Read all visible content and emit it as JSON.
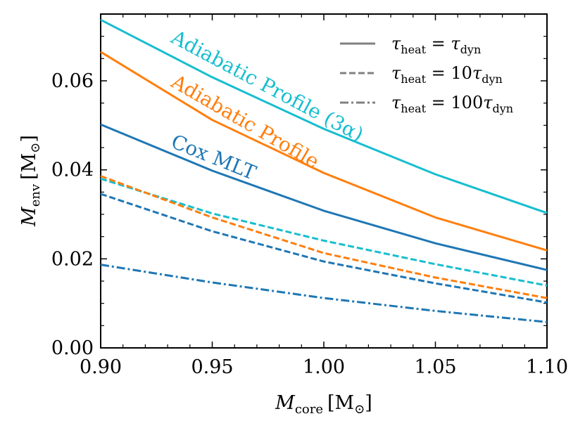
{
  "chart_data": {
    "type": "line",
    "title": "",
    "xlabel": "M_core [M_⊙]",
    "ylabel": "M_env [M_⊙]",
    "xlabel_parts": {
      "sym": "M",
      "sub": "core",
      "unit": "[M",
      "unit_sub": "⊙",
      "close": "]"
    },
    "ylabel_parts": {
      "sym": "M",
      "sub": "env",
      "unit": "[M",
      "unit_sub": "⊙",
      "close": "]"
    },
    "xlim": [
      0.9,
      1.1
    ],
    "ylim": [
      0.0,
      0.075
    ],
    "xticks": [
      0.9,
      0.95,
      1.0,
      1.05,
      1.1
    ],
    "xtick_labels": [
      "0.90",
      "0.95",
      "1.00",
      "1.05",
      "1.10"
    ],
    "yticks": [
      0.0,
      0.02,
      0.04,
      0.06
    ],
    "ytick_labels": [
      "0.00",
      "0.02",
      "0.04",
      "0.06"
    ],
    "x": [
      0.9,
      0.95,
      1.0,
      1.05,
      1.1
    ],
    "colors": {
      "cox": "#1f77b4",
      "adiabatic": "#ff7f0e",
      "adiabatic3a": "#17becf",
      "legend": "#808080"
    },
    "series": [
      {
        "name": "Adiabatic Profile (3α) τheat=τdyn",
        "model": "adiabatic3a",
        "style": "solid",
        "values": [
          0.0737,
          0.0608,
          0.0492,
          0.039,
          0.0303
        ]
      },
      {
        "name": "Adiabatic Profile τheat=τdyn",
        "model": "adiabatic",
        "style": "solid",
        "values": [
          0.0665,
          0.0512,
          0.0393,
          0.0293,
          0.0219
        ]
      },
      {
        "name": "Cox MLT τheat=τdyn",
        "model": "cox",
        "style": "solid",
        "values": [
          0.0502,
          0.0398,
          0.0308,
          0.0235,
          0.0175
        ]
      },
      {
        "name": "Adiabatic Profile (3α) τheat=10τdyn",
        "model": "adiabatic3a",
        "style": "dashed",
        "values": [
          0.038,
          0.0302,
          0.0241,
          0.0188,
          0.014
        ]
      },
      {
        "name": "Adiabatic Profile τheat=10τdyn",
        "model": "adiabatic",
        "style": "dashed",
        "values": [
          0.0386,
          0.0293,
          0.0213,
          0.0158,
          0.0112
        ]
      },
      {
        "name": "Cox MLT τheat=10τdyn",
        "model": "cox",
        "style": "dashed",
        "values": [
          0.0346,
          0.0262,
          0.0194,
          0.0145,
          0.0102
        ]
      },
      {
        "name": "Cox MLT τheat=100τdyn",
        "model": "cox",
        "style": "dashdot",
        "values": [
          0.0187,
          0.0147,
          0.0112,
          0.0083,
          0.0058
        ]
      }
    ],
    "annotations": [
      {
        "text": "Adiabatic Profile (3α)",
        "model": "adiabatic3a"
      },
      {
        "text": "Adiabatic Profile",
        "model": "adiabatic"
      },
      {
        "text": "Cox MLT",
        "model": "cox"
      }
    ],
    "legend": {
      "position": "top-right",
      "entries": [
        {
          "style": "solid",
          "label_main": "τ",
          "label_sub": "heat",
          "label_eq": " = ",
          "label_coef": "",
          "label_main2": "τ",
          "label_sub2": "dyn"
        },
        {
          "style": "dashed",
          "label_main": "τ",
          "label_sub": "heat",
          "label_eq": " = ",
          "label_coef": "10",
          "label_main2": "τ",
          "label_sub2": "dyn"
        },
        {
          "style": "dashdot",
          "label_main": "τ",
          "label_sub": "heat",
          "label_eq": " = ",
          "label_coef": "100",
          "label_main2": "τ",
          "label_sub2": "dyn"
        }
      ]
    }
  }
}
